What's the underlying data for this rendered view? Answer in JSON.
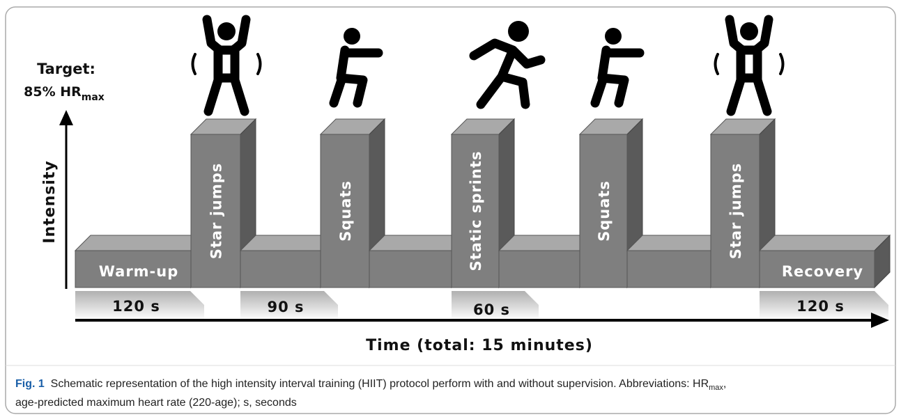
{
  "y_axis": {
    "target": "Target:",
    "target_value": "85% HR",
    "target_sub": "max",
    "label": "Intensity"
  },
  "blocks": [
    "Warm-up",
    "Star jumps",
    "Squats",
    "Static sprints",
    "Squats",
    "Star jumps",
    "Recovery"
  ],
  "durations": [
    "120 s",
    "90 s",
    "60 s",
    "120 s"
  ],
  "x_axis_label": "Time (total: 15 minutes)",
  "caption": {
    "fig": "Fig. 1",
    "text": "Schematic representation of the high intensity interval training (HIIT) protocol perform with and without supervision. Abbreviations: HR",
    "sub": "max",
    "text_end": ",",
    "line2": "age-predicted maximum heart rate (220-age); s, seconds"
  }
}
